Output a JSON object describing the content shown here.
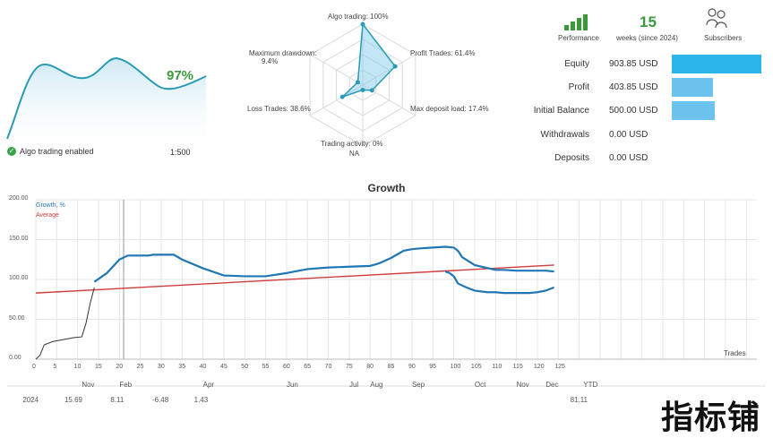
{
  "mini_chart": {
    "value": "97%",
    "badge_label": "Algo trading enabled",
    "badge_value": "1:500",
    "color": "#2a9bb5"
  },
  "radar": {
    "axes": [
      {
        "label": "Algo trading: 100%"
      },
      {
        "label": "Profit Trades: 61.4%"
      },
      {
        "label": "Max deposit load: 17.4%"
      },
      {
        "label": "Trading activity: 0%",
        "sub": "NA"
      },
      {
        "label": "Loss Trades: 38.6%"
      },
      {
        "label": "Maximum drawdown:",
        "sub": "9.4%"
      }
    ],
    "values": [
      1.0,
      0.614,
      0.174,
      0.0,
      0.386,
      0.094
    ]
  },
  "header_stats": {
    "icon1_label": "Performance",
    "weeks_value": "15",
    "weeks_label": "weeks (since 2024)",
    "icon3_label": "Subscribers"
  },
  "stats": [
    {
      "label": "Equity",
      "value": "903.85 USD",
      "fraction": 1.0,
      "color": "#2bb5e8"
    },
    {
      "label": "Profit",
      "value": "403.85 USD",
      "fraction": 0.46,
      "color": "#6cc4ee"
    },
    {
      "label": "Initial Balance",
      "value": "500.00 USD",
      "fraction": 0.48,
      "color": "#6cc4ee"
    },
    {
      "label": "Withdrawals",
      "value": "0.00 USD",
      "fraction": 0,
      "color": "#6cc4ee"
    },
    {
      "label": "Deposits",
      "value": "0.00 USD",
      "fraction": 0,
      "color": "#6cc4ee"
    }
  ],
  "chart_data": {
    "type": "line",
    "title": "Growth",
    "legend": [
      "Growth, %",
      "Average"
    ],
    "y_ticks": [
      "200.00",
      "150.00",
      "100.00",
      "50.00",
      "0.00"
    ],
    "ylim": [
      0,
      200
    ],
    "x_ticks": [
      "0",
      "5",
      "10",
      "15",
      "20",
      "25",
      "30",
      "35",
      "40",
      "45",
      "50",
      "55",
      "60",
      "65",
      "70",
      "75",
      "80",
      "85",
      "90",
      "95",
      "100",
      "105",
      "110",
      "115",
      "120",
      "125"
    ],
    "x_end_label": "Trades",
    "months": [
      {
        "label": "Nov",
        "x": 11
      },
      {
        "label": "Feb",
        "x": 20
      },
      {
        "label": "Apr",
        "x": 40
      },
      {
        "label": "Jun",
        "x": 60
      },
      {
        "label": "Jul",
        "x": 75
      },
      {
        "label": "Aug",
        "x": 80
      },
      {
        "label": "Sep",
        "x": 90
      },
      {
        "label": "Oct",
        "x": 105
      },
      {
        "label": "Nov",
        "x": 115
      },
      {
        "label": "Dec",
        "x": 122
      },
      {
        "label": "YTD",
        "x": 131
      }
    ],
    "year_row": [
      {
        "label": "2024",
        "x": -1
      },
      {
        "label": "15.69",
        "x": 9
      },
      {
        "label": "8.11",
        "x": 20
      },
      {
        "label": "-6.48",
        "x": 30
      },
      {
        "label": "1.43",
        "x": 40
      },
      {
        "label": "81.11",
        "x": 130
      }
    ],
    "growth_series": {
      "color": "#1f77b4",
      "x": [
        14,
        17,
        20,
        22,
        25,
        27,
        28,
        30,
        33,
        35,
        40,
        45,
        50,
        55,
        60,
        62,
        65,
        70,
        75,
        80,
        82,
        85,
        88,
        90,
        92,
        95,
        98,
        100,
        101,
        102,
        105,
        110,
        112,
        115,
        118,
        120,
        122,
        124
      ],
      "y": [
        97,
        108,
        125,
        130,
        130,
        130,
        131,
        131,
        131,
        125,
        114,
        105,
        104,
        104,
        108,
        110,
        113,
        115,
        116,
        117,
        120,
        127,
        136,
        138,
        139,
        140,
        141,
        140,
        136,
        128,
        118,
        112,
        112,
        111,
        111,
        111,
        111,
        110
      ]
    },
    "growth_series2": {
      "x": [
        98,
        99,
        100,
        101,
        103,
        105,
        108,
        110,
        112,
        115,
        118,
        120,
        122,
        124
      ],
      "y": [
        110,
        108,
        104,
        95,
        90,
        86,
        84,
        84,
        83,
        83,
        83,
        84,
        86,
        90
      ]
    },
    "early_series": {
      "color": "#333333",
      "x": [
        0,
        1,
        2,
        4,
        7,
        9,
        11,
        12,
        13,
        14
      ],
      "y": [
        0,
        5,
        18,
        22,
        25,
        27,
        28,
        45,
        70,
        90
      ]
    },
    "average_series": {
      "color": "#d23c3c",
      "x": [
        0,
        124
      ],
      "y": [
        83,
        118
      ]
    }
  },
  "watermark": "指标铺"
}
